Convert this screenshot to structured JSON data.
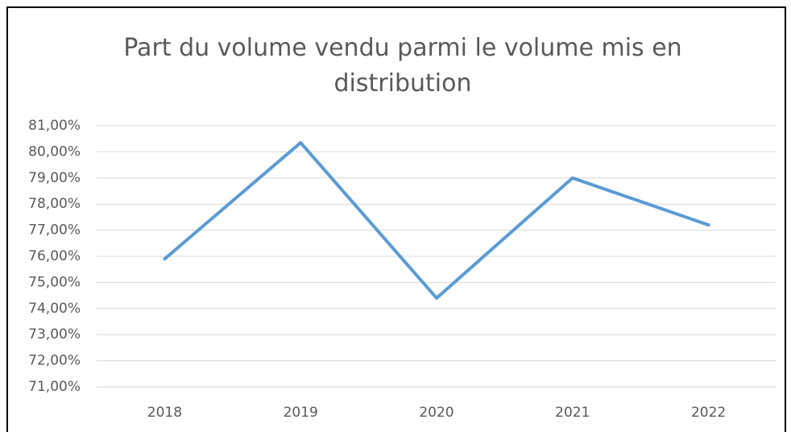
{
  "chart_data": {
    "type": "line",
    "title": "Part du volume vendu parmi le volume mis en distribution",
    "categories": [
      "2018",
      "2019",
      "2020",
      "2021",
      "2022"
    ],
    "series": [
      {
        "name": "Part du volume vendu",
        "color": "#5b9bd5",
        "values": [
          75.9,
          80.35,
          74.4,
          79.0,
          77.2
        ]
      }
    ],
    "ylim": [
      71,
      81
    ],
    "yticks": [
      {
        "value": 71,
        "label": "71,00%"
      },
      {
        "value": 72,
        "label": "72,00%"
      },
      {
        "value": 73,
        "label": "73,00%"
      },
      {
        "value": 74,
        "label": "74,00%"
      },
      {
        "value": 75,
        "label": "75,00%"
      },
      {
        "value": 76,
        "label": "76,00%"
      },
      {
        "value": 77,
        "label": "77,00%"
      },
      {
        "value": 78,
        "label": "78,00%"
      },
      {
        "value": 79,
        "label": "79,00%"
      },
      {
        "value": 80,
        "label": "80,00%"
      },
      {
        "value": 81,
        "label": "81,00%"
      }
    ],
    "grid": true
  }
}
